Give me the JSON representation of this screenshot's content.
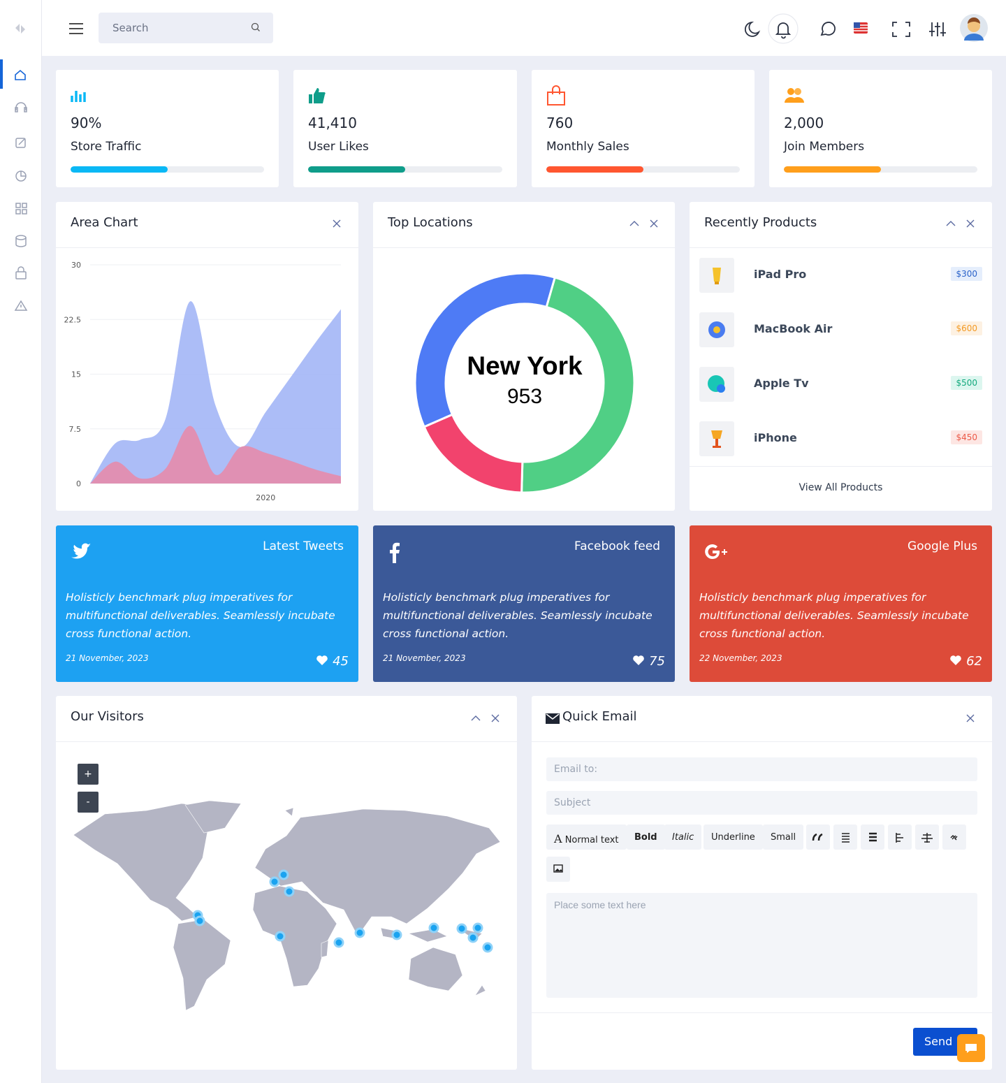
{
  "header": {
    "search_placeholder": "Search"
  },
  "stats": [
    {
      "value": "90%",
      "label": "Store Traffic",
      "progress": 50,
      "color": "#0ab8f5"
    },
    {
      "value": "41,410",
      "label": "User Likes",
      "progress": 50,
      "color": "#0f9d8a"
    },
    {
      "value": "760",
      "label": "Monthly Sales",
      "progress": 50,
      "color": "#ff5630"
    },
    {
      "value": "2,000",
      "label": "Join Members",
      "progress": 50,
      "color": "#ff9f1c"
    }
  ],
  "chart_data": [
    {
      "type": "area",
      "title": "Area Chart",
      "categories": [
        null,
        null,
        null,
        null,
        null,
        null,
        null,
        "2020",
        null,
        null,
        null
      ],
      "ylim": [
        0,
        30
      ],
      "yticks": [
        0,
        7.5,
        15,
        22.5,
        30
      ],
      "grid": true,
      "series": [
        {
          "color": "#a3b6f6",
          "values": [
            0,
            5.5,
            6,
            8.8,
            25,
            10.7,
            5,
            9.8,
            14.6,
            19.4,
            23.9
          ]
        },
        {
          "color": "#e58bab",
          "values": [
            0,
            3,
            0.7,
            2,
            7.9,
            1.2,
            5,
            4.2,
            3.1,
            1.9,
            1
          ]
        }
      ]
    },
    {
      "type": "pie",
      "title": "Top Locations",
      "center_label": "New York",
      "center_value": 953,
      "values": [
        46,
        18,
        36
      ],
      "colors": [
        "#50cf85",
        "#f2436d",
        "#4e7bf5"
      ]
    }
  ],
  "products": {
    "title": "Recently Products",
    "items": [
      {
        "name": "iPad Pro",
        "price": "$300"
      },
      {
        "name": "MacBook Air",
        "price": "$600"
      },
      {
        "name": "Apple Tv",
        "price": "$500"
      },
      {
        "name": "iPhone",
        "price": "$450"
      }
    ],
    "link": "View All Products"
  },
  "social": [
    {
      "title": "Latest Tweets",
      "text": "Holisticly benchmark plug imperatives for multifunctional deliverables. Seamlessly incubate cross functional action.",
      "date": "21 November, 2023",
      "likes": 45
    },
    {
      "title": "Facebook feed",
      "text": "Holisticly benchmark plug imperatives for multifunctional deliverables. Seamlessly incubate cross functional action.",
      "date": "21 November, 2023",
      "likes": 75
    },
    {
      "title": "Google Plus",
      "text": "Holisticly benchmark plug imperatives for multifunctional deliverables. Seamlessly incubate cross functional action.",
      "date": "22 November, 2023",
      "likes": 62
    }
  ],
  "visitors": {
    "title": "Our Visitors",
    "zoom_in": "+",
    "zoom_out": "-"
  },
  "email": {
    "title": "Quick Email",
    "to_placeholder": "Email to:",
    "subject_placeholder": "Subject",
    "toolbar": [
      "Normal text",
      "Bold",
      "Italic",
      "Underline",
      "Small"
    ],
    "body_placeholder": "Place some text here",
    "send": "Send"
  }
}
